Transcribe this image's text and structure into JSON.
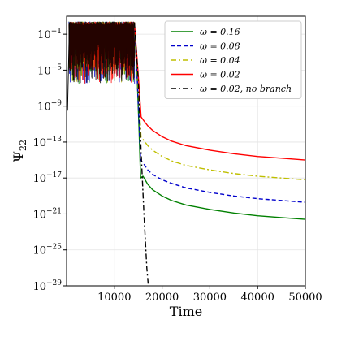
{
  "chart_data": {
    "type": "line",
    "title": "",
    "xlabel": "Time",
    "ylabel": "Ψ22",
    "ylabel_main": "Ψ",
    "ylabel_sub": "22",
    "xlim": [
      0,
      50000
    ],
    "ylim_log10": [
      -29,
      1
    ],
    "yscale": "log",
    "grid": true,
    "legend_position": "top-right",
    "x_ticks": [
      10000,
      20000,
      30000,
      40000,
      50000
    ],
    "x_tick_labels": [
      "10000",
      "20000",
      "30000",
      "40000",
      "50000"
    ],
    "y_ticks_log10": [
      -1,
      -5,
      -9,
      -13,
      -17,
      -21,
      -25,
      -29
    ],
    "y_tick_labels": [
      {
        "base": "10",
        "exp": "−1"
      },
      {
        "base": "10",
        "exp": "−5"
      },
      {
        "base": "10",
        "exp": "−9"
      },
      {
        "base": "10",
        "exp": "−13"
      },
      {
        "base": "10",
        "exp": "−17"
      },
      {
        "base": "10",
        "exp": "−21"
      },
      {
        "base": "10",
        "exp": "−25"
      },
      {
        "base": "10",
        "exp": "−29"
      }
    ],
    "oscillation_region": {
      "x_start": 500,
      "x_end": 14200,
      "log10_top": 0.4,
      "log10_bottom": -6.5
    },
    "series": [
      {
        "name": "ω = 0.16",
        "color": "#008000",
        "dash": "solid",
        "x": [
          14200,
          14800,
          15200,
          15500,
          16000,
          17000,
          18000,
          20000,
          22000,
          25000,
          30000,
          35000,
          40000,
          45000,
          50000
        ],
        "log10_y": [
          0.3,
          -6,
          -12,
          -17,
          -16.8,
          -17.7,
          -18.3,
          -19.0,
          -19.5,
          -20.0,
          -20.5,
          -20.9,
          -21.2,
          -21.4,
          -21.6
        ]
      },
      {
        "name": "ω = 0.08",
        "color": "#0000cc",
        "dash": "dashed",
        "x": [
          14200,
          14800,
          15200,
          15500,
          16000,
          17000,
          18000,
          20000,
          22000,
          25000,
          30000,
          35000,
          40000,
          45000,
          50000
        ],
        "log10_y": [
          0.3,
          -6,
          -11,
          -15,
          -15.3,
          -16.1,
          -16.6,
          -17.2,
          -17.6,
          -18.1,
          -18.6,
          -19.0,
          -19.3,
          -19.5,
          -19.7
        ]
      },
      {
        "name": "ω = 0.04",
        "color": "#bfbf00",
        "dash": "dashdot",
        "x": [
          14200,
          14800,
          15200,
          15600,
          16000,
          17000,
          18000,
          20000,
          22000,
          25000,
          30000,
          35000,
          40000,
          45000,
          50000
        ],
        "log10_y": [
          0.3,
          -5,
          -9,
          -12.5,
          -12.7,
          -13.4,
          -13.9,
          -14.6,
          -15.1,
          -15.6,
          -16.1,
          -16.5,
          -16.8,
          -17.0,
          -17.2
        ]
      },
      {
        "name": "ω = 0.02",
        "color": "#ff0000",
        "dash": "solid",
        "x": [
          14200,
          14800,
          15200,
          15600,
          16000,
          17000,
          18000,
          20000,
          22000,
          25000,
          30000,
          35000,
          40000,
          45000,
          50000
        ],
        "log10_y": [
          0.3,
          -4,
          -7,
          -10.2,
          -10.5,
          -11.2,
          -11.7,
          -12.4,
          -12.9,
          -13.4,
          -13.9,
          -14.3,
          -14.6,
          -14.8,
          -15.0
        ]
      },
      {
        "name": "ω = 0.02, no branch",
        "color": "#000000",
        "dash": "dashdot",
        "x": [
          14200,
          15000,
          15600,
          16200,
          16800,
          17200
        ],
        "log10_y": [
          0.3,
          -6,
          -14,
          -21,
          -27,
          -29.5
        ]
      }
    ]
  }
}
